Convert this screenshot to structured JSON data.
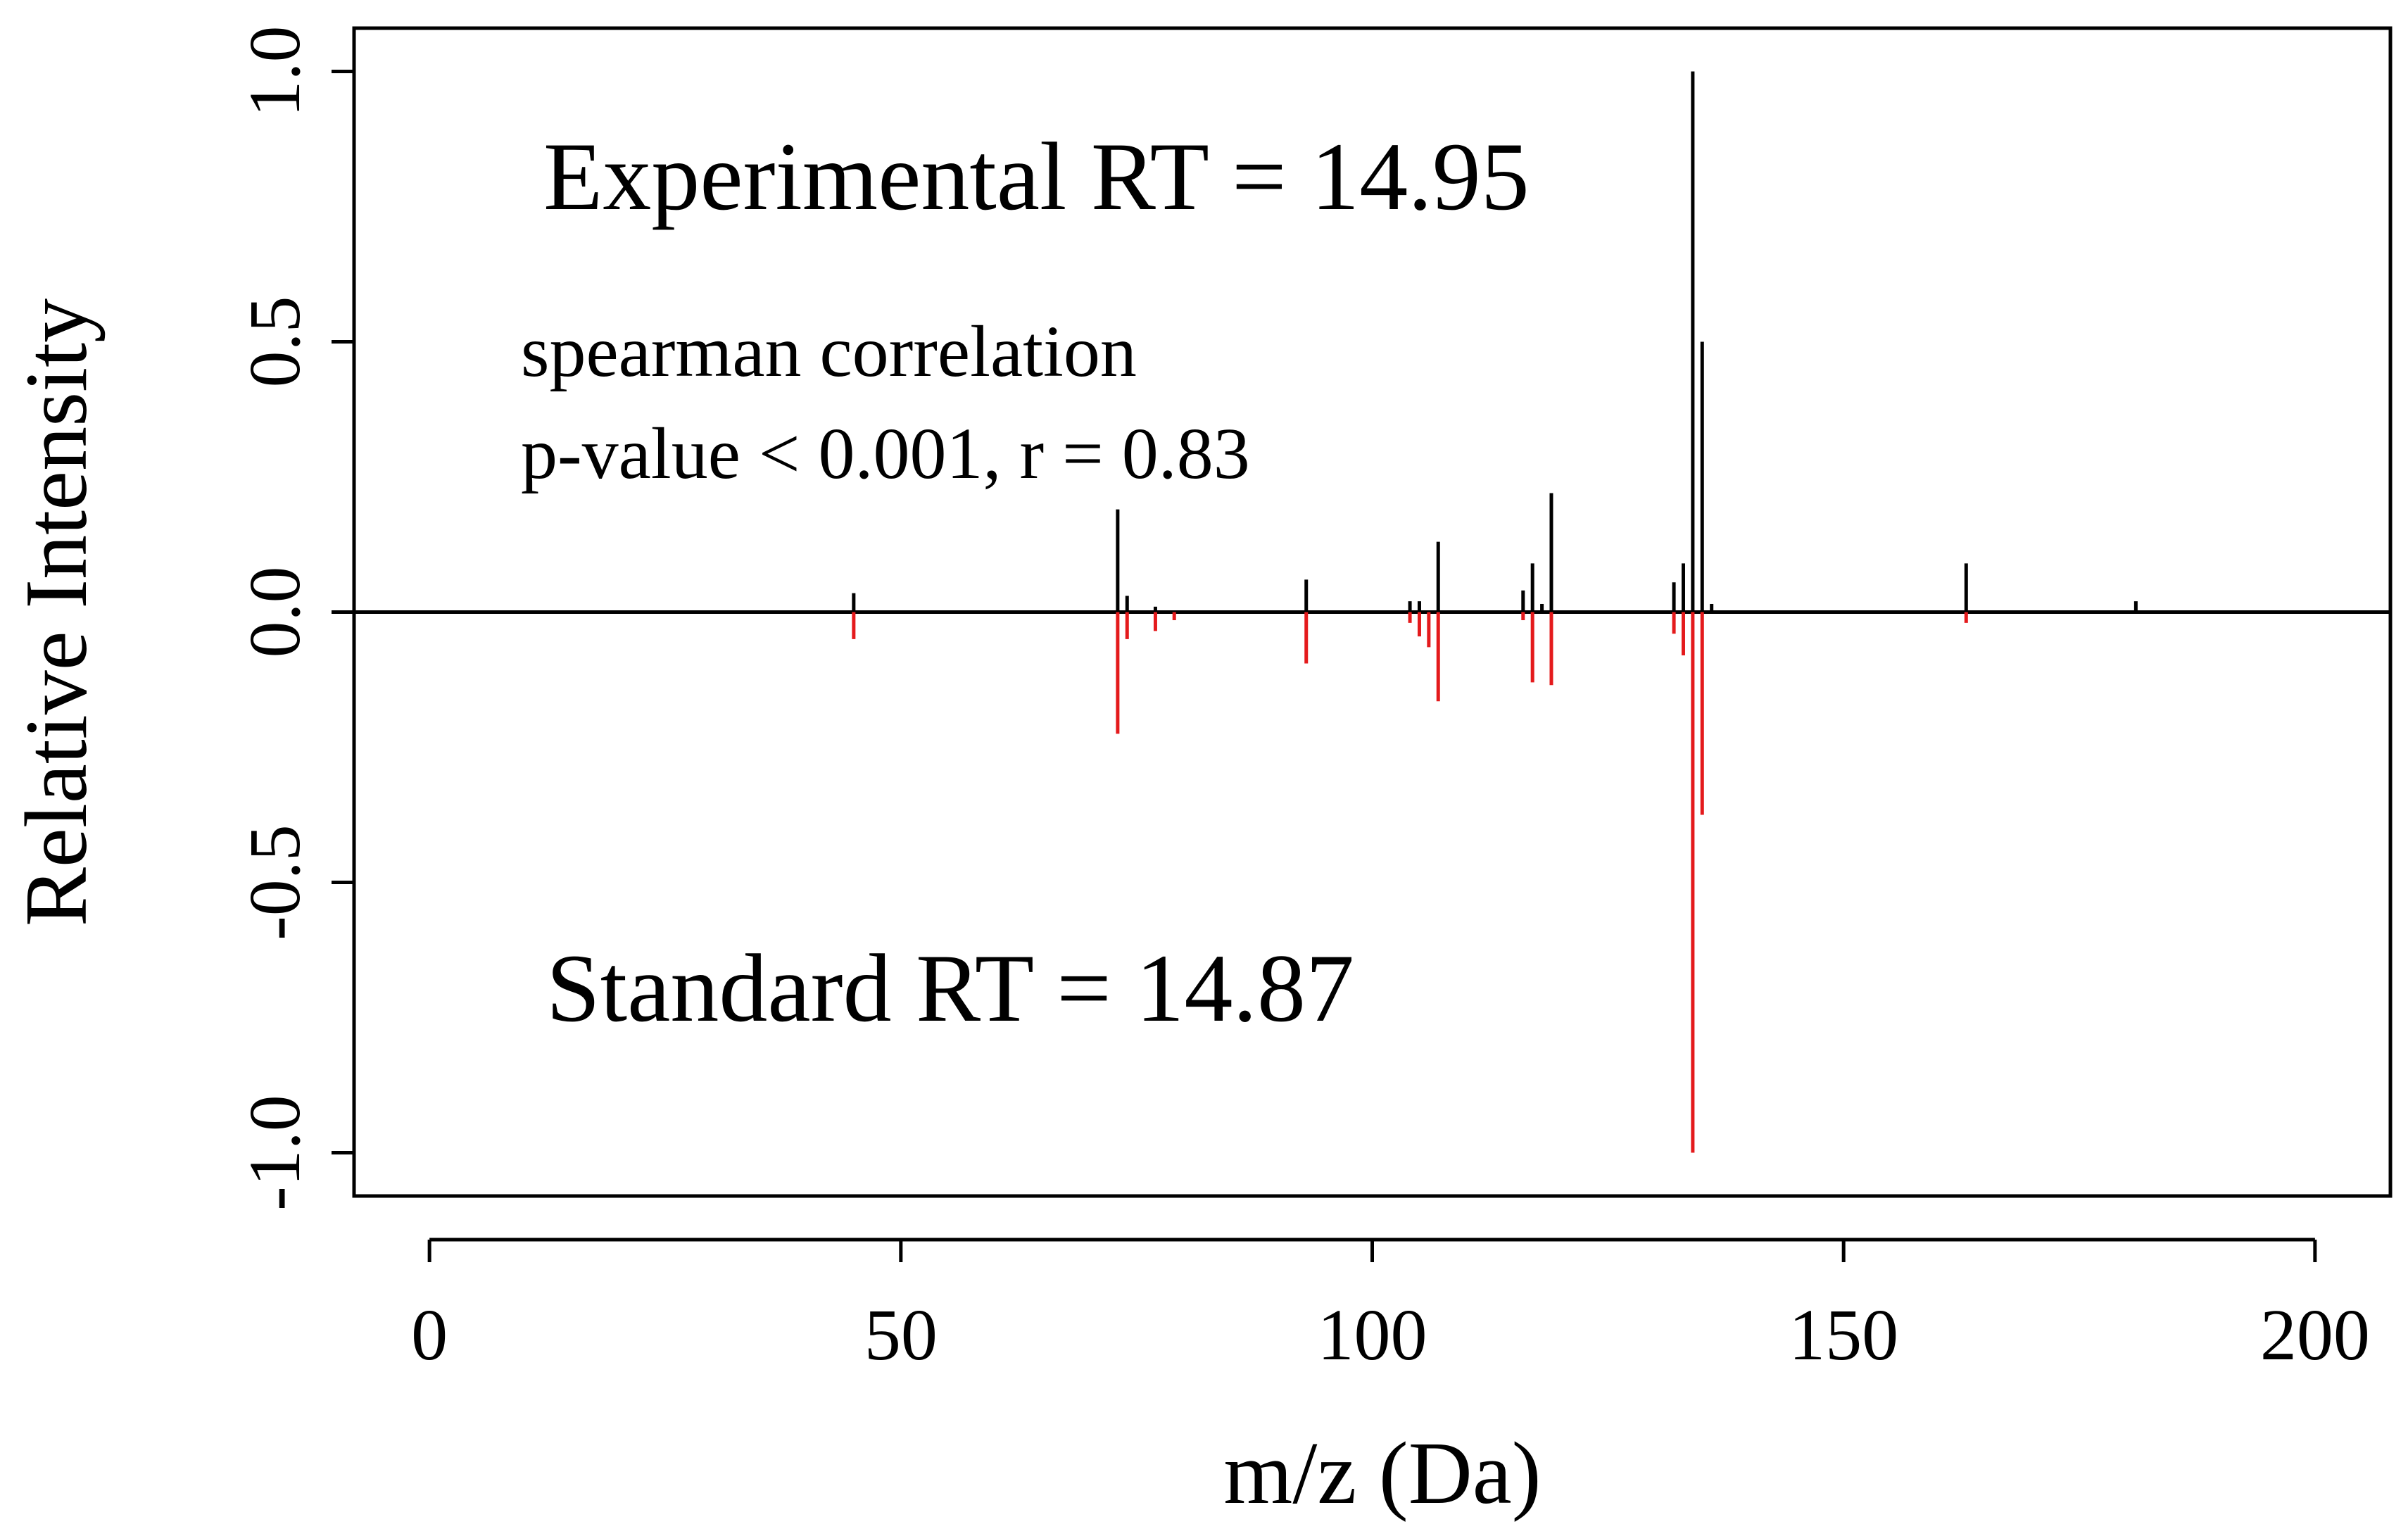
{
  "chart_data": {
    "type": "mirror-spectrum",
    "xlabel": "m/z (Da)",
    "ylabel": "Relative Intensity",
    "xlim": [
      -8,
      208
    ],
    "ylim": [
      -1.08,
      1.08
    ],
    "xticks": [
      0,
      50,
      100,
      150,
      200
    ],
    "xtick_labels": [
      "0",
      "50",
      "100",
      "150",
      "200"
    ],
    "yticks": [
      -1.0,
      -0.5,
      0.0,
      0.5,
      1.0
    ],
    "ytick_labels": [
      "-1.0",
      "-0.5",
      "0.0",
      "0.5",
      "1.0"
    ],
    "colors": {
      "experimental": "#000000",
      "standard": "#e41a1c",
      "axis": "#000000"
    },
    "annotations": {
      "experimental_rt": "Experimental RT = 14.95",
      "spearman_line1": "spearman correlation",
      "spearman_line2": "p-value < 0.001, r = 0.83",
      "standard_rt": "Standard RT = 14.87"
    },
    "series": [
      {
        "name": "Experimental",
        "direction": "up",
        "x": [
          45,
          73,
          74,
          77,
          93,
          104,
          105,
          107,
          116,
          117,
          118,
          119,
          132,
          133,
          134,
          135,
          136,
          163,
          181
        ],
        "values": [
          0.035,
          0.19,
          0.03,
          0.01,
          0.06,
          0.02,
          0.02,
          0.13,
          0.04,
          0.09,
          0.015,
          0.22,
          0.055,
          0.09,
          1.0,
          0.5,
          0.015,
          0.09,
          0.02
        ]
      },
      {
        "name": "Standard",
        "direction": "down",
        "x": [
          45,
          73,
          74,
          77,
          79,
          93,
          104,
          105,
          106,
          107,
          116,
          117,
          119,
          132,
          133,
          134,
          135,
          163
        ],
        "values": [
          -0.05,
          -0.225,
          -0.05,
          -0.035,
          -0.015,
          -0.095,
          -0.02,
          -0.045,
          -0.065,
          -0.165,
          -0.015,
          -0.13,
          -0.135,
          -0.04,
          -0.08,
          -1.0,
          -0.375,
          -0.02
        ]
      }
    ]
  }
}
